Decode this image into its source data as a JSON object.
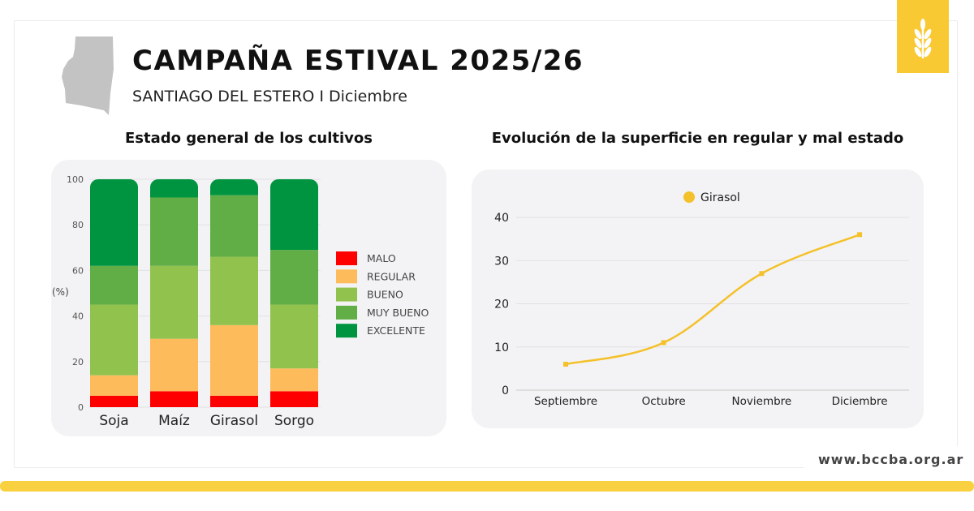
{
  "header": {
    "title": "CAMPAÑA ESTIVAL 2025/26",
    "subtitle": "SANTIAGO DEL ESTERO I Diciembre"
  },
  "logo": {
    "icon": "wheat-icon",
    "color": "#f9c934"
  },
  "footer": {
    "url": "www.bccba.org.ar"
  },
  "chart_data": [
    {
      "type": "bar",
      "stacked": true,
      "title": "Estado general de los cultivos",
      "ylabel": "(%)",
      "ylim": [
        0,
        100
      ],
      "yticks": [
        0,
        20,
        40,
        60,
        80,
        100
      ],
      "grid": true,
      "legend": "right",
      "categories": [
        "Soja",
        "Maíz",
        "Girasol",
        "Sorgo"
      ],
      "series": [
        {
          "name": "MALO",
          "color": "#ff0000",
          "values": [
            5,
            7,
            5,
            7
          ]
        },
        {
          "name": "REGULAR",
          "color": "#fdbb5b",
          "values": [
            9,
            23,
            31,
            10
          ]
        },
        {
          "name": "BUENO",
          "color": "#92c24e",
          "values": [
            31,
            32,
            30,
            28
          ]
        },
        {
          "name": "MUY BUENO",
          "color": "#62ae46",
          "values": [
            17,
            30,
            27,
            24
          ]
        },
        {
          "name": "EXCELENTE",
          "color": "#009440",
          "values": [
            38,
            8,
            7,
            31
          ]
        }
      ]
    },
    {
      "type": "line",
      "title": "Evolución de la superficie en regular y mal estado",
      "ylim": [
        0,
        40
      ],
      "yticks": [
        0,
        10,
        20,
        30,
        40
      ],
      "grid": true,
      "legend": "top",
      "categories": [
        "Septiembre",
        "Octubre",
        "Noviembre",
        "Diciembre"
      ],
      "series": [
        {
          "name": "Girasol",
          "color": "#f4c12a",
          "values": [
            6,
            11,
            27,
            36
          ]
        }
      ]
    }
  ]
}
